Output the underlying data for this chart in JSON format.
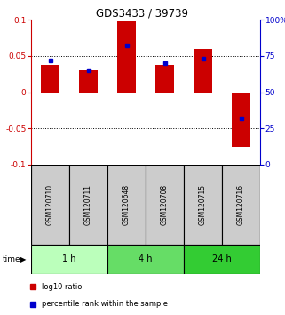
{
  "title": "GDS3433 / 39739",
  "samples": [
    "GSM120710",
    "GSM120711",
    "GSM120648",
    "GSM120708",
    "GSM120715",
    "GSM120716"
  ],
  "log10_ratio": [
    0.037,
    0.03,
    0.097,
    0.038,
    0.06,
    -0.075
  ],
  "percentile_rank": [
    0.72,
    0.65,
    0.82,
    0.7,
    0.73,
    0.32
  ],
  "ylim_left": [
    -0.1,
    0.1
  ],
  "ylim_right": [
    0,
    100
  ],
  "yticks_left": [
    -0.1,
    -0.05,
    0,
    0.05,
    0.1
  ],
  "yticks_right": [
    0,
    25,
    50,
    75,
    100
  ],
  "hlines_dotted": [
    -0.05,
    0.05
  ],
  "hline_dashed": 0,
  "bar_color": "#cc0000",
  "percentile_color": "#0000cc",
  "bar_width": 0.5,
  "time_groups": [
    {
      "label": "1 h",
      "start": 0,
      "end": 2,
      "color": "#bbffbb"
    },
    {
      "label": "4 h",
      "start": 2,
      "end": 4,
      "color": "#66dd66"
    },
    {
      "label": "24 h",
      "start": 4,
      "end": 6,
      "color": "#33cc33"
    }
  ],
  "sample_box_color": "#cccccc",
  "legend_red_label": "log10 ratio",
  "legend_blue_label": "percentile rank within the sample",
  "left_axis_color": "#cc0000",
  "right_axis_color": "#0000cc"
}
